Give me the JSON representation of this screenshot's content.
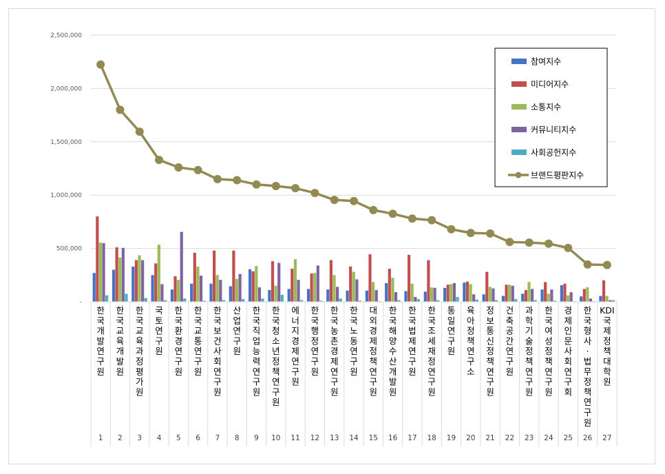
{
  "chart_data": {
    "type": "bar",
    "title": "",
    "xlabel": "",
    "ylabel": "",
    "ylim": [
      0,
      2500000
    ],
    "yticks": [
      0,
      500000,
      1000000,
      1500000,
      2000000,
      2500000
    ],
    "ytick_labels": [
      "-",
      "500,000",
      "1,000,000",
      "1,500,000",
      "2,000,000",
      "2,500,000"
    ],
    "grid": true,
    "legend_position": "top-right",
    "ranks": [
      "1",
      "2",
      "3",
      "4",
      "5",
      "6",
      "7",
      "8",
      "9",
      "10",
      "11",
      "12",
      "13",
      "14",
      "15",
      "16",
      "17",
      "18",
      "19",
      "20",
      "21",
      "22",
      "23",
      "24",
      "25",
      "26",
      "27"
    ],
    "categories": [
      "한국개발연구원",
      "한국교육개발원",
      "한국교육과정평가원",
      "국토연구원",
      "한국환경연구원",
      "한국교통연구원",
      "한국보건사회연구원",
      "산업연구원",
      "한국직업능력연구원",
      "한국청소년정책연구원",
      "에너지경제연구원",
      "한국행정연구원",
      "한국농촌경제연구원",
      "한국노동연구원",
      "대외경제정책연구원",
      "한국해양수산개발원",
      "한국법제연구원",
      "한국조세재정연구원",
      "통일연구원",
      "육아정책연구소",
      "정보통신정책연구원",
      "건축공간연구원",
      "과학기술정책연구원",
      "한국여성정책연구원",
      "경제인문사회연구회",
      "한국형사·법무정책연구원",
      "KDI국제정책대학원"
    ],
    "series": [
      {
        "name": "참여지수",
        "kind": "bar",
        "color": "#4472c4",
        "values": [
          270000,
          300000,
          330000,
          250000,
          115000,
          170000,
          170000,
          145000,
          305000,
          110000,
          120000,
          120000,
          115000,
          105000,
          105000,
          175000,
          100000,
          95000,
          130000,
          180000,
          70000,
          55000,
          75000,
          115000,
          155000,
          50000,
          55000
        ]
      },
      {
        "name": "미디어지수",
        "kind": "bar",
        "color": "#c0504d",
        "values": [
          800000,
          510000,
          390000,
          360000,
          240000,
          460000,
          480000,
          480000,
          285000,
          380000,
          310000,
          265000,
          390000,
          330000,
          445000,
          310000,
          440000,
          390000,
          160000,
          190000,
          280000,
          160000,
          110000,
          185000,
          170000,
          120000,
          200000
        ]
      },
      {
        "name": "소통지수",
        "kind": "bar",
        "color": "#9bbb59",
        "values": [
          555000,
          415000,
          435000,
          535000,
          205000,
          330000,
          250000,
          215000,
          335000,
          150000,
          400000,
          270000,
          250000,
          280000,
          185000,
          225000,
          170000,
          135000,
          165000,
          165000,
          140000,
          160000,
          185000,
          75000,
          60000,
          135000,
          55000
        ]
      },
      {
        "name": "커뮤니티지수",
        "kind": "bar",
        "color": "#8064a2",
        "values": [
          550000,
          505000,
          390000,
          165000,
          655000,
          245000,
          205000,
          260000,
          135000,
          365000,
          205000,
          340000,
          140000,
          210000,
          110000,
          90000,
          45000,
          130000,
          175000,
          70000,
          125000,
          150000,
          120000,
          115000,
          90000,
          30000,
          15000
        ]
      },
      {
        "name": "사회공헌지수",
        "kind": "bar",
        "color": "#4bacc6",
        "values": [
          60000,
          75000,
          35000,
          15000,
          30000,
          10000,
          15000,
          25000,
          30000,
          65000,
          15000,
          10000,
          30000,
          10000,
          5000,
          15000,
          25000,
          15000,
          45000,
          20000,
          15000,
          25000,
          15000,
          10000,
          5000,
          5000,
          15000
        ]
      },
      {
        "name": "브랜드평판지수",
        "kind": "line",
        "color": "#938953",
        "values": [
          2225000,
          1800000,
          1595000,
          1330000,
          1260000,
          1235000,
          1150000,
          1140000,
          1100000,
          1085000,
          1065000,
          1020000,
          955000,
          945000,
          860000,
          825000,
          780000,
          765000,
          680000,
          645000,
          640000,
          560000,
          555000,
          545000,
          505000,
          350000,
          345000
        ]
      }
    ]
  }
}
